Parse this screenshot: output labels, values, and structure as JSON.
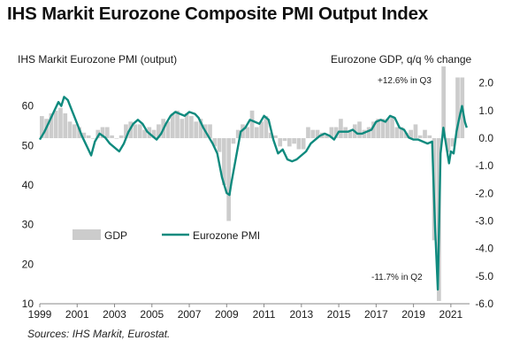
{
  "title": "IHS Markit Eurozone Composite PMI Output Index",
  "source": "Sources: IHS Markit, Eurostat.",
  "colors": {
    "pmi_line": "#0f8a7e",
    "gdp_bars": "#cccccc",
    "axis": "#888888",
    "text": "#1a1a1a"
  },
  "chart_data": {
    "type": "line+bar",
    "title": "IHS Markit Eurozone Composite PMI Output Index",
    "left_axis": {
      "label": "IHS Markit Eurozone PMI (output)",
      "range": [
        10,
        70
      ],
      "ticks": [
        10,
        20,
        30,
        40,
        50,
        60
      ]
    },
    "right_axis": {
      "label": "Eurozone GDP, q/q % change",
      "range": [
        -6.0,
        2.6
      ],
      "ticks": [
        "-6.0",
        "-5.0",
        "-4.0",
        "-3.0",
        "-2.0",
        "-1.0",
        "0.0",
        "1.0",
        "2.0"
      ]
    },
    "x_axis": {
      "range": [
        1999,
        2022
      ],
      "ticks": [
        "1999",
        "2001",
        "2003",
        "2005",
        "2007",
        "2009",
        "2011",
        "2013",
        "2015",
        "2017",
        "2019",
        "2021"
      ]
    },
    "legend": [
      "GDP",
      "Eurozone PMI"
    ],
    "annotations": [
      {
        "text": "+12.6% in Q3",
        "x": 2020.6,
        "y_gdp": 2.0
      },
      {
        "text": "-11.7% in Q2",
        "x": 2020.3,
        "y_gdp": -4.9
      }
    ],
    "series": [
      {
        "name": "Eurozone PMI",
        "axis": "left",
        "points": [
          [
            1999.0,
            51.5
          ],
          [
            1999.25,
            53.5
          ],
          [
            1999.5,
            56.0
          ],
          [
            1999.75,
            58.5
          ],
          [
            2000.0,
            61.0
          ],
          [
            2000.15,
            60.0
          ],
          [
            2000.3,
            62.3
          ],
          [
            2000.5,
            61.5
          ],
          [
            2000.75,
            58.5
          ],
          [
            2001.0,
            55.5
          ],
          [
            2001.25,
            52.5
          ],
          [
            2001.5,
            50.0
          ],
          [
            2001.75,
            47.5
          ],
          [
            2001.95,
            51.0
          ],
          [
            2002.2,
            53.0
          ],
          [
            2002.5,
            52.0
          ],
          [
            2002.75,
            50.5
          ],
          [
            2003.0,
            49.5
          ],
          [
            2003.25,
            48.5
          ],
          [
            2003.5,
            50.5
          ],
          [
            2003.75,
            53.5
          ],
          [
            2004.0,
            55.5
          ],
          [
            2004.25,
            56.5
          ],
          [
            2004.5,
            55.5
          ],
          [
            2004.75,
            53.5
          ],
          [
            2005.0,
            52.5
          ],
          [
            2005.25,
            51.5
          ],
          [
            2005.5,
            53.0
          ],
          [
            2005.75,
            55.5
          ],
          [
            2006.0,
            57.5
          ],
          [
            2006.25,
            58.5
          ],
          [
            2006.5,
            58.0
          ],
          [
            2006.75,
            57.5
          ],
          [
            2007.0,
            58.5
          ],
          [
            2007.3,
            58.0
          ],
          [
            2007.5,
            57.0
          ],
          [
            2007.75,
            54.5
          ],
          [
            2008.0,
            52.5
          ],
          [
            2008.25,
            50.5
          ],
          [
            2008.5,
            48.0
          ],
          [
            2008.75,
            42.0
          ],
          [
            2009.0,
            38.0
          ],
          [
            2009.15,
            37.5
          ],
          [
            2009.25,
            40.5
          ],
          [
            2009.5,
            47.0
          ],
          [
            2009.75,
            53.5
          ],
          [
            2010.0,
            54.5
          ],
          [
            2010.25,
            56.5
          ],
          [
            2010.5,
            56.0
          ],
          [
            2010.75,
            55.5
          ],
          [
            2011.0,
            57.5
          ],
          [
            2011.25,
            56.5
          ],
          [
            2011.5,
            51.5
          ],
          [
            2011.75,
            48.0
          ],
          [
            2012.0,
            49.0
          ],
          [
            2012.25,
            46.5
          ],
          [
            2012.5,
            46.0
          ],
          [
            2012.75,
            46.5
          ],
          [
            2013.0,
            47.5
          ],
          [
            2013.25,
            48.5
          ],
          [
            2013.5,
            50.5
          ],
          [
            2013.75,
            51.5
          ],
          [
            2014.0,
            52.5
          ],
          [
            2014.25,
            53.0
          ],
          [
            2014.5,
            52.5
          ],
          [
            2014.75,
            51.5
          ],
          [
            2015.0,
            53.5
          ],
          [
            2015.25,
            53.5
          ],
          [
            2015.5,
            53.5
          ],
          [
            2015.75,
            54.0
          ],
          [
            2016.0,
            53.0
          ],
          [
            2016.25,
            53.0
          ],
          [
            2016.5,
            53.5
          ],
          [
            2016.75,
            54.0
          ],
          [
            2017.0,
            56.0
          ],
          [
            2017.25,
            56.5
          ],
          [
            2017.5,
            56.0
          ],
          [
            2017.75,
            57.5
          ],
          [
            2018.0,
            57.0
          ],
          [
            2018.25,
            54.5
          ],
          [
            2018.5,
            54.0
          ],
          [
            2018.75,
            52.0
          ],
          [
            2019.0,
            51.5
          ],
          [
            2019.25,
            51.5
          ],
          [
            2019.5,
            51.0
          ],
          [
            2019.75,
            50.5
          ],
          [
            2020.0,
            51.0
          ],
          [
            2020.15,
            30.0
          ],
          [
            2020.3,
            13.6
          ],
          [
            2020.45,
            48.0
          ],
          [
            2020.6,
            54.5
          ],
          [
            2020.75,
            50.0
          ],
          [
            2020.9,
            45.5
          ],
          [
            2021.0,
            48.5
          ],
          [
            2021.15,
            48.0
          ],
          [
            2021.3,
            53.5
          ],
          [
            2021.45,
            57.0
          ],
          [
            2021.6,
            60.0
          ],
          [
            2021.75,
            56.0
          ],
          [
            2021.85,
            54.5
          ]
        ]
      },
      {
        "name": "GDP",
        "axis": "right",
        "bars": [
          [
            1999.0,
            0.8
          ],
          [
            1999.25,
            0.7
          ],
          [
            1999.5,
            0.9
          ],
          [
            1999.75,
            1.0
          ],
          [
            2000.0,
            1.1
          ],
          [
            2000.25,
            0.9
          ],
          [
            2000.5,
            0.6
          ],
          [
            2000.75,
            0.5
          ],
          [
            2001.0,
            0.4
          ],
          [
            2001.25,
            0.2
          ],
          [
            2001.5,
            0.1
          ],
          [
            2001.75,
            0.0
          ],
          [
            2002.0,
            0.3
          ],
          [
            2002.25,
            0.4
          ],
          [
            2002.5,
            0.4
          ],
          [
            2002.75,
            0.1
          ],
          [
            2003.0,
            0.0
          ],
          [
            2003.25,
            0.1
          ],
          [
            2003.5,
            0.5
          ],
          [
            2003.75,
            0.6
          ],
          [
            2004.0,
            0.5
          ],
          [
            2004.25,
            0.5
          ],
          [
            2004.5,
            0.3
          ],
          [
            2004.75,
            0.4
          ],
          [
            2005.0,
            0.3
          ],
          [
            2005.25,
            0.5
          ],
          [
            2005.5,
            0.7
          ],
          [
            2005.75,
            0.6
          ],
          [
            2006.0,
            0.9
          ],
          [
            2006.25,
            1.0
          ],
          [
            2006.5,
            0.7
          ],
          [
            2006.75,
            0.9
          ],
          [
            2007.0,
            0.8
          ],
          [
            2007.25,
            0.6
          ],
          [
            2007.5,
            0.7
          ],
          [
            2007.75,
            0.5
          ],
          [
            2008.0,
            0.5
          ],
          [
            2008.25,
            -0.3
          ],
          [
            2008.5,
            -0.5
          ],
          [
            2008.75,
            -1.7
          ],
          [
            2009.0,
            -3.0
          ],
          [
            2009.25,
            -0.2
          ],
          [
            2009.5,
            0.3
          ],
          [
            2009.75,
            0.5
          ],
          [
            2010.0,
            0.4
          ],
          [
            2010.25,
            1.0
          ],
          [
            2010.5,
            0.4
          ],
          [
            2010.75,
            0.6
          ],
          [
            2011.0,
            0.8
          ],
          [
            2011.25,
            0.2
          ],
          [
            2011.5,
            0.1
          ],
          [
            2011.75,
            -0.3
          ],
          [
            2012.0,
            -0.1
          ],
          [
            2012.25,
            -0.3
          ],
          [
            2012.5,
            -0.2
          ],
          [
            2012.75,
            -0.4
          ],
          [
            2013.0,
            -0.4
          ],
          [
            2013.25,
            0.4
          ],
          [
            2013.5,
            0.3
          ],
          [
            2013.75,
            0.3
          ],
          [
            2014.0,
            0.2
          ],
          [
            2014.25,
            0.1
          ],
          [
            2014.5,
            0.4
          ],
          [
            2014.75,
            0.4
          ],
          [
            2015.0,
            0.7
          ],
          [
            2015.25,
            0.4
          ],
          [
            2015.5,
            0.3
          ],
          [
            2015.75,
            0.5
          ],
          [
            2016.0,
            0.6
          ],
          [
            2016.25,
            0.3
          ],
          [
            2016.5,
            0.4
          ],
          [
            2016.75,
            0.6
          ],
          [
            2017.0,
            0.7
          ],
          [
            2017.25,
            0.7
          ],
          [
            2017.5,
            0.7
          ],
          [
            2017.75,
            0.8
          ],
          [
            2018.0,
            0.4
          ],
          [
            2018.25,
            0.4
          ],
          [
            2018.5,
            0.2
          ],
          [
            2018.75,
            0.3
          ],
          [
            2019.0,
            0.5
          ],
          [
            2019.25,
            0.1
          ],
          [
            2019.5,
            0.3
          ],
          [
            2019.75,
            0.1
          ],
          [
            2020.0,
            -3.7
          ],
          [
            2020.25,
            -5.9
          ],
          [
            2020.5,
            2.6
          ],
          [
            2020.75,
            -0.5
          ],
          [
            2021.0,
            -0.3
          ],
          [
            2021.25,
            2.2
          ],
          [
            2021.5,
            2.2
          ]
        ]
      }
    ]
  }
}
